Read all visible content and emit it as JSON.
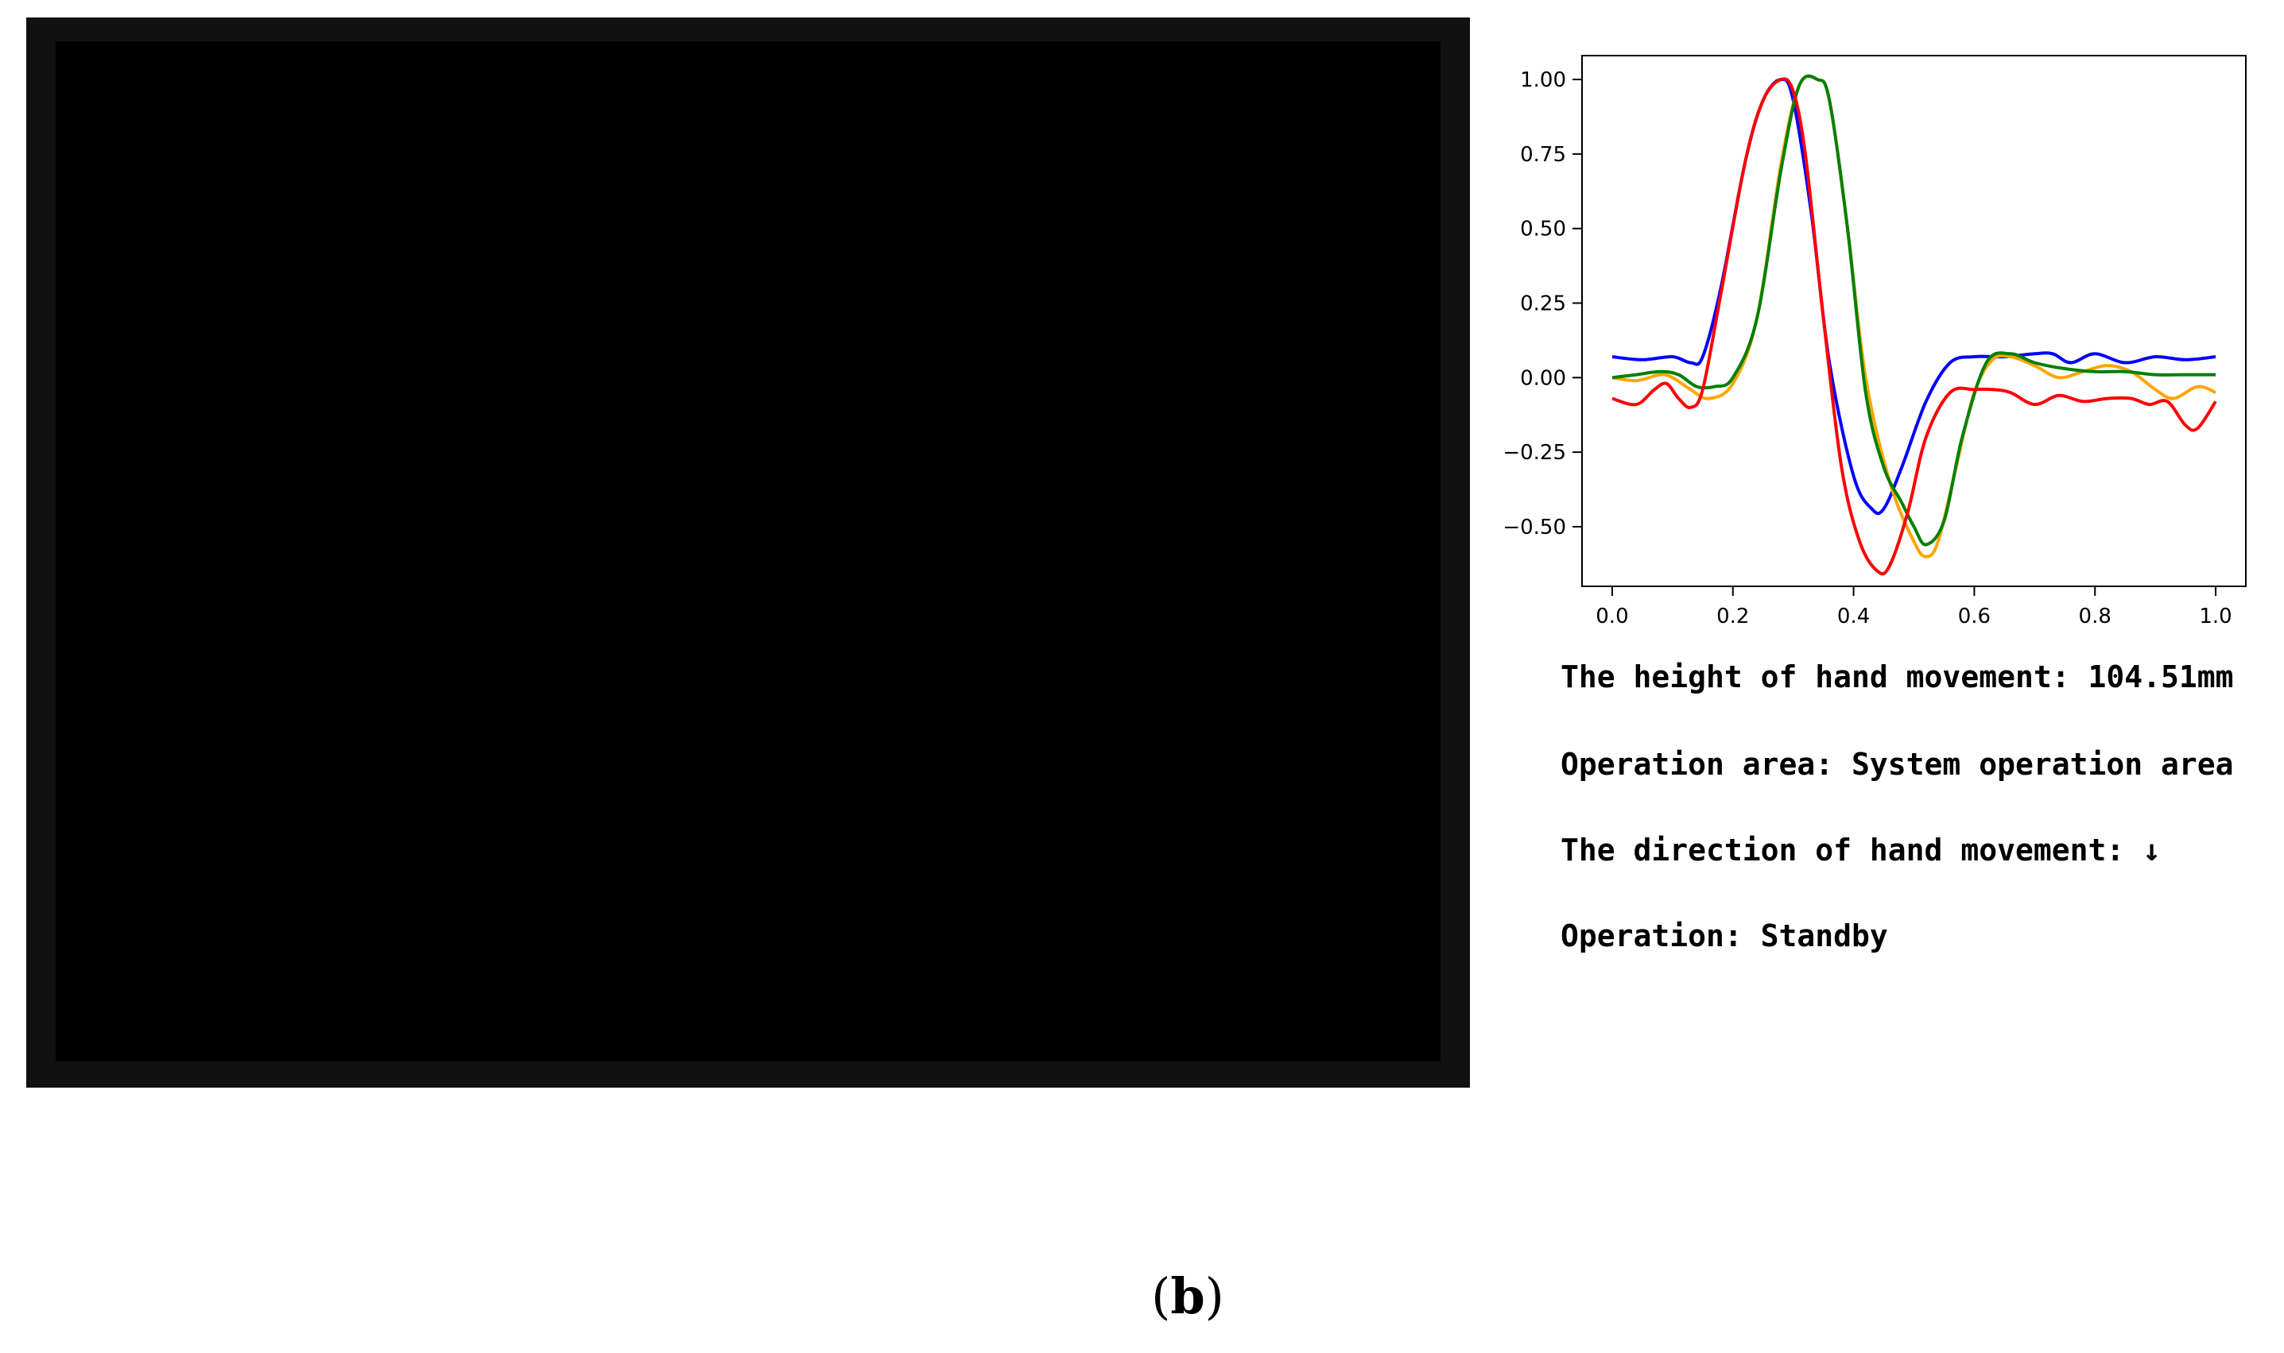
{
  "video": {
    "state": "blank"
  },
  "info": {
    "height_line": "The height of hand movement: 104.51mm",
    "area_line": "Operation area: System operation area",
    "direction_prefix": "The direction of hand movement: ",
    "direction_arrow": "↓",
    "operation_line": "Operation: Standby"
  },
  "caption": {
    "open": "(",
    "letter": "b",
    "close": ")"
  },
  "chart_data": {
    "type": "line",
    "xlim": [
      -0.05,
      1.05
    ],
    "ylim": [
      -0.7,
      1.08
    ],
    "xticks": [
      0.0,
      0.2,
      0.4,
      0.6,
      0.8,
      1.0
    ],
    "xtick_labels": [
      "0.0",
      "0.2",
      "0.4",
      "0.6",
      "0.8",
      "1.0"
    ],
    "yticks": [
      -0.5,
      -0.25,
      0.0,
      0.25,
      0.5,
      0.75,
      1.0
    ],
    "ytick_labels": [
      "−0.50",
      "−0.25",
      "0.00",
      "0.25",
      "0.50",
      "0.75",
      "1.00"
    ],
    "grid": false,
    "series": [
      {
        "color": "#0000ff",
        "x": [
          0.0,
          0.05,
          0.1,
          0.13,
          0.15,
          0.18,
          0.22,
          0.25,
          0.28,
          0.3,
          0.33,
          0.36,
          0.4,
          0.43,
          0.45,
          0.48,
          0.52,
          0.56,
          0.6,
          0.65,
          0.7,
          0.73,
          0.76,
          0.8,
          0.85,
          0.9,
          0.95,
          1.0
        ],
        "y": [
          0.07,
          0.06,
          0.07,
          0.05,
          0.07,
          0.3,
          0.72,
          0.93,
          1.0,
          0.93,
          0.55,
          0.05,
          -0.33,
          -0.44,
          -0.44,
          -0.3,
          -0.08,
          0.05,
          0.07,
          0.07,
          0.08,
          0.08,
          0.05,
          0.08,
          0.05,
          0.07,
          0.06,
          0.07
        ]
      },
      {
        "color": "#ffa500",
        "x": [
          0.0,
          0.04,
          0.08,
          0.1,
          0.13,
          0.16,
          0.2,
          0.24,
          0.28,
          0.31,
          0.34,
          0.36,
          0.39,
          0.42,
          0.46,
          0.5,
          0.52,
          0.54,
          0.57,
          0.6,
          0.63,
          0.66,
          0.7,
          0.74,
          0.78,
          0.82,
          0.86,
          0.9,
          0.93,
          0.97,
          1.0
        ],
        "y": [
          0.0,
          -0.01,
          0.01,
          0.0,
          -0.04,
          -0.07,
          -0.02,
          0.2,
          0.72,
          0.98,
          1.0,
          0.93,
          0.5,
          0.0,
          -0.35,
          -0.55,
          -0.6,
          -0.55,
          -0.3,
          -0.05,
          0.06,
          0.07,
          0.04,
          0.0,
          0.02,
          0.04,
          0.02,
          -0.04,
          -0.07,
          -0.03,
          -0.05
        ]
      },
      {
        "color": "#008000",
        "x": [
          0.0,
          0.04,
          0.08,
          0.11,
          0.14,
          0.17,
          0.2,
          0.24,
          0.28,
          0.31,
          0.34,
          0.36,
          0.39,
          0.42,
          0.45,
          0.48,
          0.5,
          0.52,
          0.55,
          0.58,
          0.62,
          0.66,
          0.7,
          0.75,
          0.8,
          0.85,
          0.9,
          0.95,
          1.0
        ],
        "y": [
          0.0,
          0.01,
          0.02,
          0.01,
          -0.03,
          -0.03,
          0.0,
          0.2,
          0.7,
          0.98,
          1.0,
          0.93,
          0.5,
          -0.05,
          -0.3,
          -0.42,
          -0.5,
          -0.56,
          -0.48,
          -0.2,
          0.05,
          0.08,
          0.05,
          0.03,
          0.02,
          0.02,
          0.01,
          0.01,
          0.01
        ]
      },
      {
        "color": "#ff0000",
        "x": [
          0.0,
          0.04,
          0.07,
          0.09,
          0.11,
          0.13,
          0.15,
          0.18,
          0.22,
          0.25,
          0.28,
          0.3,
          0.32,
          0.35,
          0.38,
          0.41,
          0.44,
          0.46,
          0.49,
          0.52,
          0.56,
          0.6,
          0.63,
          0.66,
          0.7,
          0.74,
          0.78,
          0.82,
          0.86,
          0.89,
          0.92,
          0.95,
          0.97,
          1.0
        ],
        "y": [
          -0.07,
          -0.09,
          -0.04,
          -0.02,
          -0.07,
          -0.1,
          -0.04,
          0.28,
          0.72,
          0.93,
          1.0,
          0.96,
          0.75,
          0.2,
          -0.3,
          -0.55,
          -0.65,
          -0.63,
          -0.45,
          -0.2,
          -0.05,
          -0.04,
          -0.04,
          -0.05,
          -0.09,
          -0.06,
          -0.08,
          -0.07,
          -0.07,
          -0.09,
          -0.08,
          -0.16,
          -0.17,
          -0.08
        ]
      }
    ]
  }
}
